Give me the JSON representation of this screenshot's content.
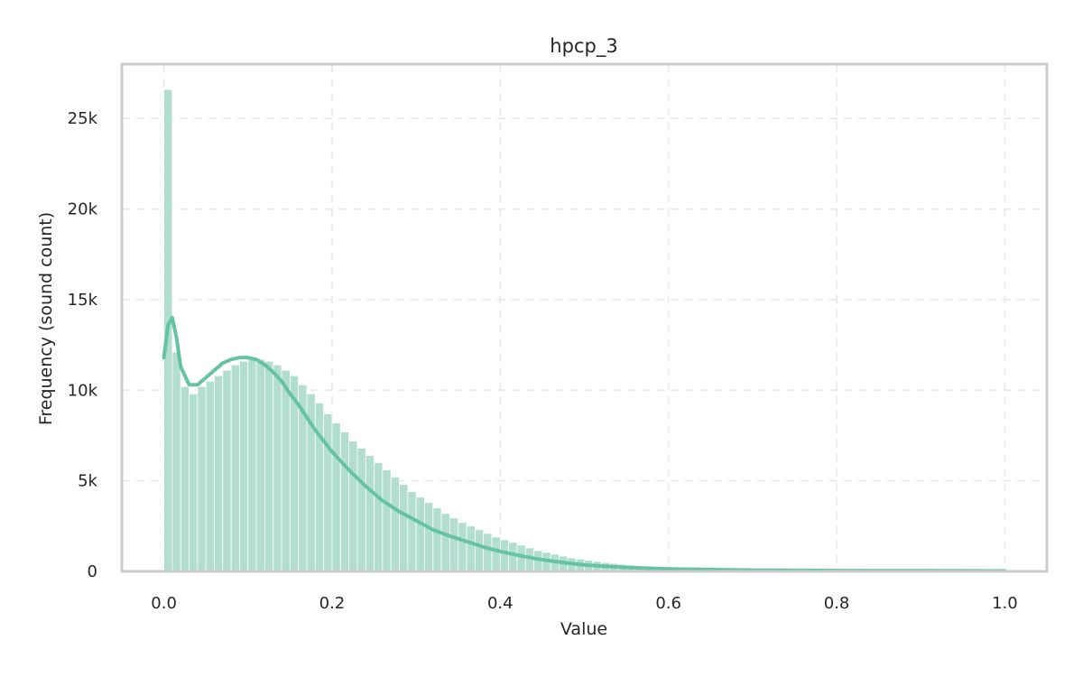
{
  "chart_data": {
    "type": "bar",
    "title": "hpcp_3",
    "xlabel": "Value",
    "ylabel": "Frequency (sound count)",
    "xlim": [
      -0.05,
      1.05
    ],
    "ylim": [
      0,
      28000
    ],
    "x_ticks": [
      0.0,
      0.2,
      0.4,
      0.6,
      0.8,
      1.0
    ],
    "x_tick_labels": [
      "0.0",
      "0.2",
      "0.4",
      "0.6",
      "0.8",
      "1.0"
    ],
    "y_ticks": [
      0,
      5000,
      10000,
      15000,
      20000,
      25000
    ],
    "y_tick_labels": [
      "0",
      "5k",
      "10k",
      "15k",
      "20k",
      "25k"
    ],
    "grid": true,
    "bar_color": "#b1dece",
    "line_color": "#66c2a5",
    "histogram": {
      "bin_width": 0.01,
      "bin_start": 0.0,
      "counts": [
        26600,
        12100,
        10200,
        9800,
        10200,
        10500,
        10800,
        11100,
        11400,
        11600,
        11700,
        11700,
        11600,
        11400,
        11100,
        10800,
        10300,
        9800,
        9300,
        8700,
        8200,
        7700,
        7200,
        6800,
        6400,
        6000,
        5600,
        5200,
        4800,
        4400,
        4100,
        3800,
        3500,
        3200,
        2950,
        2700,
        2500,
        2300,
        2100,
        1900,
        1750,
        1600,
        1450,
        1300,
        1150,
        1050,
        950,
        850,
        750,
        680,
        610,
        550,
        490,
        440,
        390,
        350,
        310,
        280,
        250,
        220,
        200,
        180,
        160,
        145,
        130,
        120,
        110,
        100,
        92,
        85,
        80,
        75,
        70,
        66,
        62,
        58,
        55,
        52,
        50,
        48,
        46,
        44,
        42,
        40,
        38,
        37,
        36,
        35,
        34,
        33,
        32,
        31,
        30,
        30,
        29,
        29,
        28,
        28,
        28,
        40
      ]
    },
    "kde": {
      "x": [
        0.0,
        0.005,
        0.01,
        0.015,
        0.02,
        0.03,
        0.04,
        0.05,
        0.06,
        0.07,
        0.08,
        0.09,
        0.1,
        0.11,
        0.12,
        0.13,
        0.14,
        0.15,
        0.16,
        0.17,
        0.18,
        0.2,
        0.22,
        0.24,
        0.26,
        0.28,
        0.3,
        0.32,
        0.34,
        0.36,
        0.38,
        0.4,
        0.42,
        0.44,
        0.46,
        0.48,
        0.5,
        0.52,
        0.55,
        0.58,
        0.6,
        0.65,
        0.7,
        0.75,
        0.8,
        0.85,
        0.9,
        0.95,
        1.0
      ],
      "y": [
        11800,
        13600,
        14000,
        12900,
        11300,
        10300,
        10300,
        10700,
        11100,
        11500,
        11700,
        11800,
        11800,
        11700,
        11400,
        11000,
        10500,
        9800,
        9200,
        8500,
        7800,
        6600,
        5600,
        4700,
        3900,
        3300,
        2800,
        2300,
        1950,
        1650,
        1350,
        1100,
        900,
        720,
        580,
        460,
        360,
        290,
        220,
        170,
        140,
        100,
        70,
        55,
        45,
        40,
        35,
        30,
        25
      ]
    }
  }
}
